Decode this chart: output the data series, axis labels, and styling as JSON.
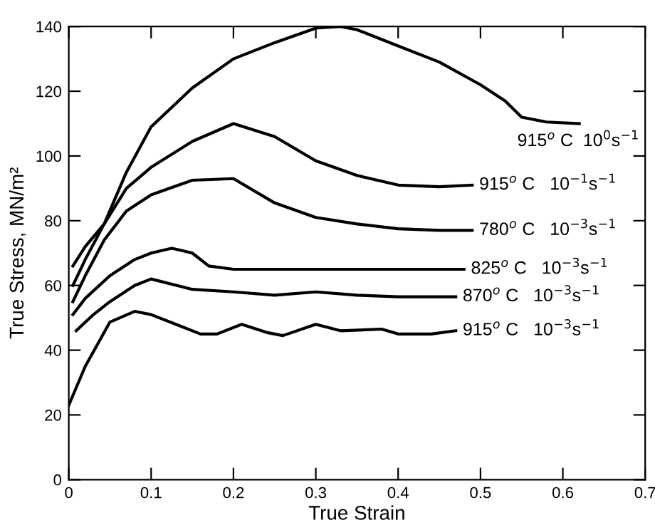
{
  "chart_data": {
    "type": "line",
    "xlabel": "True Strain",
    "ylabel": "True Stress, MN/m²",
    "xlim": [
      0,
      0.7
    ],
    "ylim": [
      0,
      140
    ],
    "xticks": [
      0,
      0.1,
      0.2,
      0.3,
      0.4,
      0.5,
      0.6,
      0.7
    ],
    "yticks": [
      0,
      20,
      40,
      60,
      80,
      100,
      120,
      140
    ],
    "grid": false,
    "legend": "right",
    "marker": "none",
    "line_style": "solid",
    "series": [
      {
        "name": "915$^{o}$ C  10$^{0}$s$^{−1}$",
        "color": "#000000",
        "x": [
          0.005,
          0.02,
          0.043,
          0.07,
          0.1,
          0.15,
          0.2,
          0.25,
          0.3,
          0.33,
          0.35,
          0.4,
          0.45,
          0.5,
          0.53,
          0.55,
          0.58,
          0.62
        ],
        "values": [
          66,
          72,
          79,
          95,
          109,
          121,
          130,
          135,
          139.5,
          140,
          139,
          134,
          129,
          122,
          117,
          112,
          110.5,
          110
        ]
      },
      {
        "name": "915$^{o}$ C   10$^{−1}$s$^{−1}$",
        "color": "#000000",
        "x": [
          0.005,
          0.02,
          0.043,
          0.07,
          0.1,
          0.15,
          0.2,
          0.25,
          0.3,
          0.35,
          0.4,
          0.45,
          0.49
        ],
        "values": [
          60,
          68,
          79,
          90,
          96.5,
          104.5,
          110,
          106,
          98.5,
          94,
          91,
          90.5,
          91
        ]
      },
      {
        "name": "780$^{o}$ C   10$^{−3}$s$^{−1}$",
        "color": "#000000",
        "x": [
          0.005,
          0.02,
          0.043,
          0.07,
          0.1,
          0.15,
          0.2,
          0.25,
          0.3,
          0.35,
          0.4,
          0.45,
          0.49
        ],
        "values": [
          55,
          63,
          74,
          83,
          88,
          92.5,
          93,
          85.5,
          81,
          79,
          77.5,
          77,
          77
        ]
      },
      {
        "name": "825$^{o}$ C   10$^{−3}$s$^{−1}$",
        "color": "#000000",
        "x": [
          0.005,
          0.02,
          0.05,
          0.08,
          0.1,
          0.125,
          0.15,
          0.17,
          0.2,
          0.3,
          0.4,
          0.48
        ],
        "values": [
          51,
          56,
          63,
          68,
          70,
          71.5,
          70,
          66,
          65,
          65,
          65,
          65
        ]
      },
      {
        "name": "870$^{o}$ C   10$^{−3}$s$^{−1}$",
        "color": "#000000",
        "x": [
          0.009,
          0.03,
          0.05,
          0.08,
          0.1,
          0.15,
          0.2,
          0.25,
          0.3,
          0.35,
          0.4,
          0.47
        ],
        "values": [
          46,
          51,
          55,
          60,
          62,
          58.8,
          58,
          57,
          58,
          57,
          56.5,
          56.5
        ]
      },
      {
        "name": "915$^{o}$ C   10$^{−3}$s$^{−1}$",
        "color": "#000000",
        "x": [
          0,
          0.02,
          0.05,
          0.08,
          0.1,
          0.13,
          0.16,
          0.18,
          0.21,
          0.24,
          0.26,
          0.3,
          0.33,
          0.38,
          0.4,
          0.44,
          0.47
        ],
        "values": [
          23,
          35,
          48.7,
          52,
          51,
          48,
          45,
          45,
          48,
          45.5,
          44.5,
          48,
          46,
          46.5,
          45,
          45,
          46
        ]
      }
    ]
  }
}
